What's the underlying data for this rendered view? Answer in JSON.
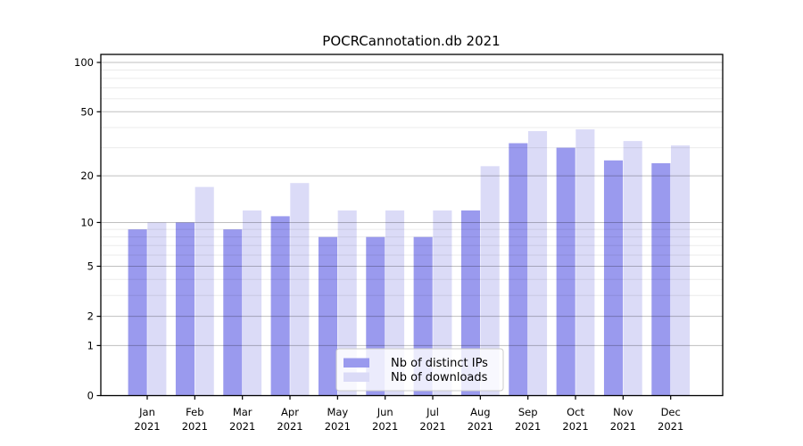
{
  "chart_data": {
    "type": "bar",
    "title": "POCRCannotation.db 2021",
    "categories": [
      "Jan",
      "Feb",
      "Mar",
      "Apr",
      "May",
      "Jun",
      "Jul",
      "Aug",
      "Sep",
      "Oct",
      "Nov",
      "Dec"
    ],
    "x_year_label": "2021",
    "series": [
      {
        "name": "Nb of distinct IPs",
        "color": "#9a9aee",
        "values": [
          9,
          10,
          9,
          11,
          8,
          8,
          8,
          12,
          32,
          30,
          25,
          24
        ]
      },
      {
        "name": "Nb of downloads",
        "color": "#dbdbf7",
        "values": [
          10,
          17,
          12,
          18,
          12,
          12,
          12,
          23,
          38,
          39,
          33,
          31
        ]
      }
    ],
    "yscale": "log(1+x)",
    "yticks": [
      0,
      1,
      2,
      5,
      10,
      20,
      50,
      100
    ],
    "minor_yticks": [
      3,
      4,
      6,
      7,
      8,
      9,
      30,
      40,
      60,
      70,
      80,
      90
    ],
    "ylim": [
      0,
      110
    ],
    "grid": "on",
    "legend_position": "lower center",
    "colors": {
      "major_grid": "rgba(0,0,0,0.25)",
      "minor_grid": "rgba(0,0,0,0.08)",
      "spine": "#000000",
      "legend_border": "#cccccc",
      "legend_background": "rgba(255,255,255,0.8)"
    }
  }
}
